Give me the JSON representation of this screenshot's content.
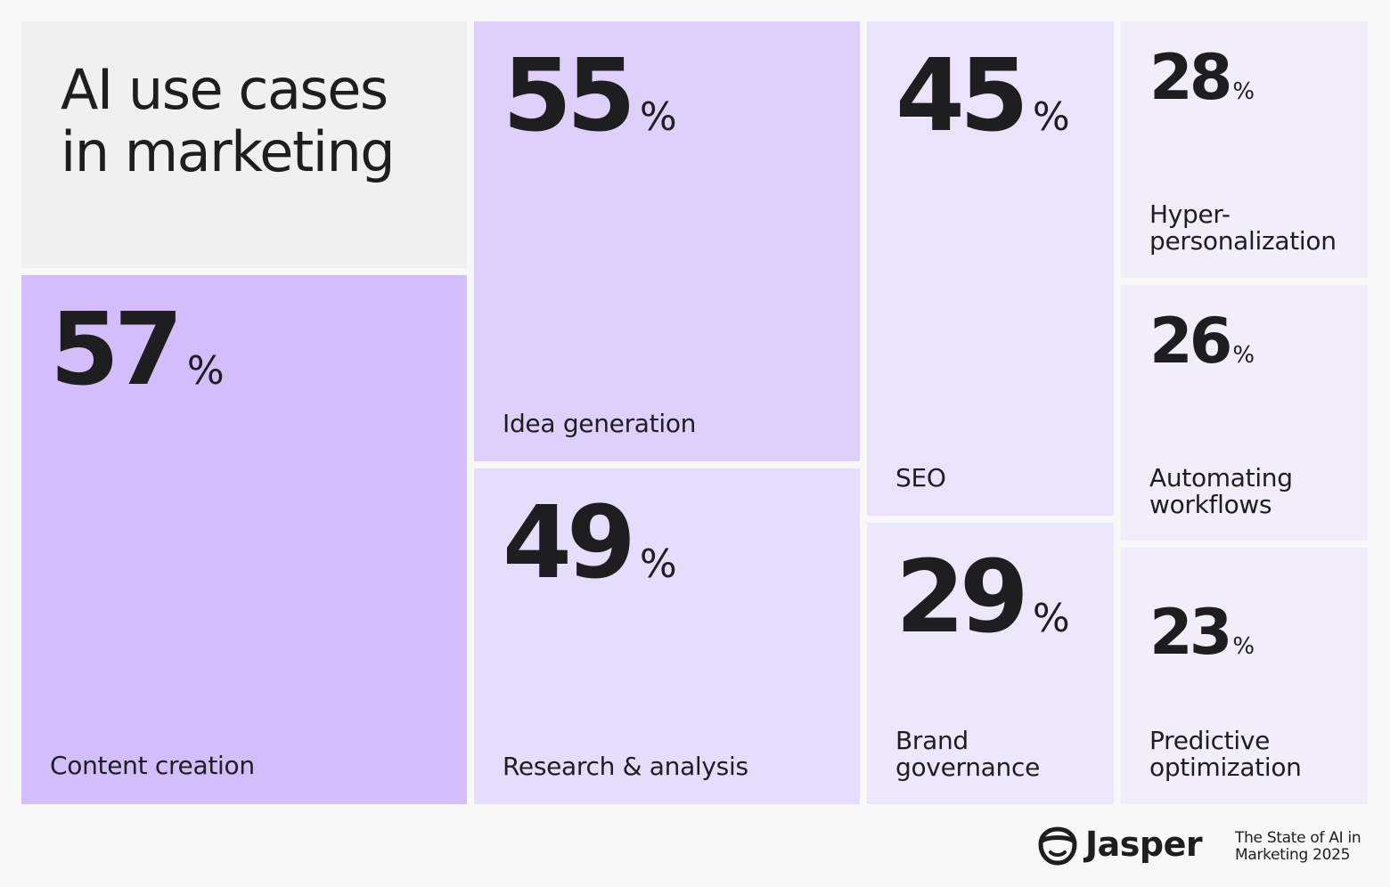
{
  "header": {
    "title": "AI use cases in marketing"
  },
  "colors": {
    "background": "#f9f8f8",
    "title_tile": "#f1f0f1",
    "text": "#1e1d20",
    "purple_strong": "#d3bdfa",
    "purple_mid": "#dfcffb",
    "purple_light": "#e6dcfb",
    "purple_pale": "#ede7fb",
    "purple_palest": "#f1edfa"
  },
  "chart_data": {
    "type": "treemap",
    "title": "AI use cases in marketing",
    "unit": "%",
    "categories": [
      "Content creation",
      "Idea generation",
      "Research & analysis",
      "SEO",
      "Brand governance",
      "Hyper-personalization",
      "Automating workflows",
      "Predictive optimization"
    ],
    "values": [
      57,
      55,
      49,
      45,
      29,
      28,
      26,
      23
    ],
    "items": [
      {
        "label": "Content creation",
        "value": 57,
        "value_text": "57",
        "pct": "%"
      },
      {
        "label": "Idea generation",
        "value": 55,
        "value_text": "55",
        "pct": "%"
      },
      {
        "label": "Research & analysis",
        "value": 49,
        "value_text": "49",
        "pct": "%"
      },
      {
        "label": "SEO",
        "value": 45,
        "value_text": "45",
        "pct": "%"
      },
      {
        "label": "Brand governance",
        "value": 29,
        "value_text": "29",
        "pct": "%"
      },
      {
        "label": "Hyper-personalization",
        "value": 28,
        "value_text": "28",
        "pct": "%"
      },
      {
        "label": "Automating workflows",
        "value": 26,
        "value_text": "26",
        "pct": "%"
      },
      {
        "label": "Predictive optimization",
        "value": 23,
        "value_text": "23",
        "pct": "%"
      }
    ]
  },
  "footer": {
    "brand": "Jasper",
    "brand_icon": "jasper-logo-icon",
    "report_line1": "The State of AI in",
    "report_line2": "Marketing 2025"
  }
}
